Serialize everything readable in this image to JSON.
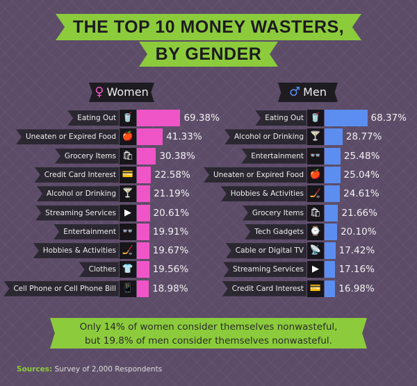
{
  "title": {
    "line1": "THE TOP 10 MONEY WASTERS,",
    "line2": "BY GENDER"
  },
  "colors": {
    "women": "#f055c8",
    "men": "#5b8ef0",
    "accent": "#8ccc3c",
    "background": "#5d4c68"
  },
  "chart_data": [
    {
      "type": "bar",
      "orientation": "horizontal",
      "title": "Women",
      "unit": "%",
      "color": "#f055c8",
      "categories": [
        "Eating Out",
        "Uneaten or Expired Food",
        "Grocery Items",
        "Credit Card Interest",
        "Alcohol or Drinking",
        "Streaming Services",
        "Entertainment",
        "Hobbies & Activities",
        "Clothes",
        "Cell Phone or Cell Phone Bill"
      ],
      "icons": [
        "drink-cup-icon",
        "apple-icon",
        "grocery-bag-icon",
        "credit-card-icon",
        "cocktail-icon",
        "play-icon",
        "3d-glasses-icon",
        "hockey-stick-icon",
        "shirt-icon",
        "phone-icon"
      ],
      "values": [
        69.38,
        41.33,
        30.38,
        22.58,
        21.19,
        20.61,
        19.91,
        19.67,
        19.56,
        18.98
      ],
      "labels": [
        "69.38%",
        "41.33%",
        "30.38%",
        "22.58%",
        "21.19%",
        "20.61%",
        "19.91%",
        "19.67%",
        "19.56%",
        "18.98%"
      ]
    },
    {
      "type": "bar",
      "orientation": "horizontal",
      "title": "Men",
      "unit": "%",
      "color": "#5b8ef0",
      "categories": [
        "Eating Out",
        "Alcohol or Drinking",
        "Entertainment",
        "Uneaten or Expired Food",
        "Hobbies & Activities",
        "Grocery Items",
        "Tech Gadgets",
        "Cable or Digital TV",
        "Streaming Services",
        "Credit Card Interest"
      ],
      "icons": [
        "drink-cup-icon",
        "cocktail-icon",
        "3d-glasses-icon",
        "apple-icon",
        "hockey-stick-icon",
        "grocery-bag-icon",
        "smartwatch-icon",
        "satellite-dish-icon",
        "play-icon",
        "credit-card-icon"
      ],
      "values": [
        68.37,
        28.77,
        25.48,
        25.04,
        24.61,
        21.66,
        20.1,
        17.42,
        17.16,
        16.98
      ],
      "labels": [
        "68.37%",
        "28.77%",
        "25.48%",
        "25.04%",
        "24.61%",
        "21.66%",
        "20.10%",
        "17.42%",
        "17.16%",
        "16.98%"
      ]
    }
  ],
  "note": {
    "line1": "Only 14% of women consider themselves nonwasteful,",
    "line2": "but 19.8% of men consider themselves nonwasteful."
  },
  "sources": {
    "label": "Sources:",
    "text": "Survey of 2,000 Respondents"
  }
}
